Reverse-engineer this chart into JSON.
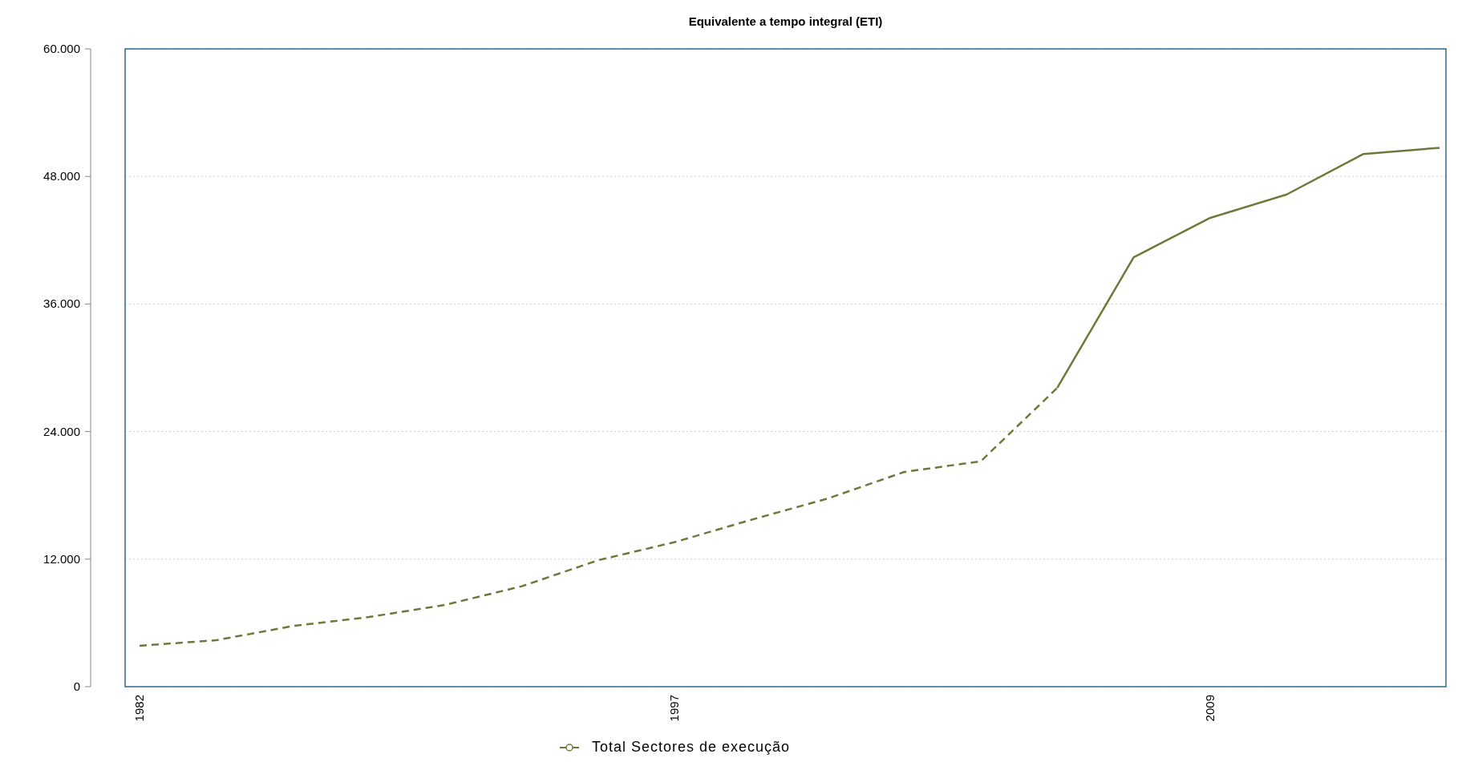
{
  "chart_data": {
    "type": "line",
    "title": "Equivalente a tempo integral (ETI)",
    "categories": [
      "1982",
      null,
      null,
      null,
      null,
      null,
      null,
      "1997",
      null,
      null,
      null,
      null,
      null,
      null,
      "2009",
      null,
      null,
      null
    ],
    "series": [
      {
        "name": "Total Sectores de execução",
        "color": "#6b7a3a",
        "line_style": "dashed",
        "values": [
          3850,
          4370,
          5700,
          6550,
          7700,
          9450,
          11900,
          13600,
          15700,
          17700,
          20200,
          21200,
          28100,
          null,
          null,
          null,
          null,
          null
        ]
      },
      {
        "color": "#6b7a3a",
        "line_style": "solid",
        "values": [
          null,
          null,
          null,
          null,
          null,
          null,
          null,
          null,
          null,
          null,
          null,
          null,
          28100,
          40400,
          44100,
          46300,
          50100,
          50700
        ]
      }
    ],
    "ylim": [
      0,
      60000
    ],
    "yticks": [
      {
        "value": 0,
        "label": "0"
      },
      {
        "value": 12000,
        "label": "12.000"
      },
      {
        "value": 24000,
        "label": "24.000"
      },
      {
        "value": 36000,
        "label": "36.000"
      },
      {
        "value": 48000,
        "label": "48.000"
      },
      {
        "value": 60000,
        "label": "60.000"
      }
    ],
    "grid": "y",
    "legend": "bottom",
    "marker": "none"
  }
}
